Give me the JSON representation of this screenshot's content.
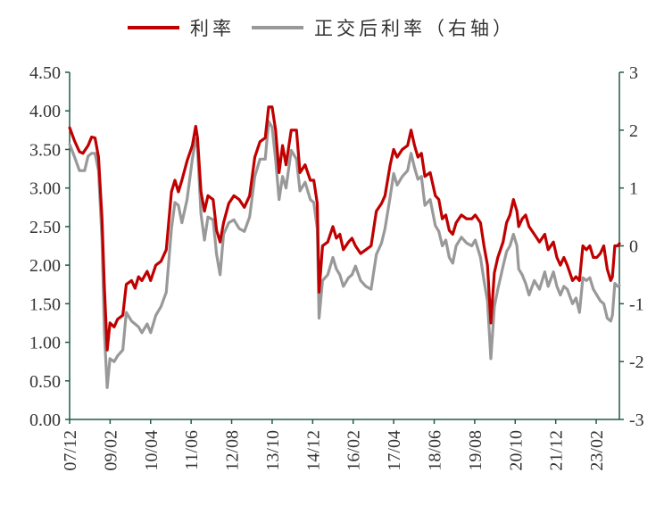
{
  "chart_data": {
    "type": "line",
    "legend_position": "top",
    "grid": false,
    "xlim": [
      2007.917,
      2023.75
    ],
    "y_left": {
      "lim": [
        0,
        4.5
      ],
      "ticks": [
        "0.00",
        "0.50",
        "1.00",
        "1.50",
        "2.00",
        "2.50",
        "3.00",
        "3.50",
        "4.00",
        "4.50"
      ]
    },
    "y_right": {
      "lim": [
        -3,
        3
      ],
      "ticks": [
        "-3",
        "-2",
        "-1",
        "0",
        "1",
        "2",
        "3"
      ]
    },
    "x_ticks": [
      {
        "label": "07/12",
        "t": 2007.917
      },
      {
        "label": "09/02",
        "t": 2009.083
      },
      {
        "label": "10/04",
        "t": 2010.25
      },
      {
        "label": "11/06",
        "t": 2011.417
      },
      {
        "label": "12/08",
        "t": 2012.583
      },
      {
        "label": "13/10",
        "t": 2013.75
      },
      {
        "label": "14/12",
        "t": 2014.917
      },
      {
        "label": "16/02",
        "t": 2016.083
      },
      {
        "label": "17/04",
        "t": 2017.25
      },
      {
        "label": "18/06",
        "t": 2018.417
      },
      {
        "label": "19/08",
        "t": 2019.583
      },
      {
        "label": "20/10",
        "t": 2020.75
      },
      {
        "label": "21/12",
        "t": 2021.917
      },
      {
        "label": "23/02",
        "t": 2023.083
      }
    ],
    "series": [
      {
        "name": "利率",
        "axis": "left",
        "color": "#c00000",
        "points": [
          [
            2007.92,
            3.78
          ],
          [
            2008.05,
            3.62
          ],
          [
            2008.2,
            3.47
          ],
          [
            2008.3,
            3.45
          ],
          [
            2008.45,
            3.55
          ],
          [
            2008.55,
            3.66
          ],
          [
            2008.65,
            3.65
          ],
          [
            2008.75,
            3.4
          ],
          [
            2008.85,
            2.6
          ],
          [
            2008.92,
            1.7
          ],
          [
            2009.0,
            0.9
          ],
          [
            2009.08,
            1.25
          ],
          [
            2009.2,
            1.2
          ],
          [
            2009.3,
            1.3
          ],
          [
            2009.45,
            1.35
          ],
          [
            2009.55,
            1.75
          ],
          [
            2009.7,
            1.8
          ],
          [
            2009.8,
            1.7
          ],
          [
            2009.9,
            1.85
          ],
          [
            2010.0,
            1.8
          ],
          [
            2010.15,
            1.92
          ],
          [
            2010.25,
            1.8
          ],
          [
            2010.4,
            2.0
          ],
          [
            2010.55,
            2.05
          ],
          [
            2010.7,
            2.2
          ],
          [
            2010.85,
            2.95
          ],
          [
            2010.95,
            3.1
          ],
          [
            2011.05,
            2.95
          ],
          [
            2011.15,
            3.1
          ],
          [
            2011.3,
            3.35
          ],
          [
            2011.45,
            3.55
          ],
          [
            2011.55,
            3.8
          ],
          [
            2011.6,
            3.65
          ],
          [
            2011.7,
            2.95
          ],
          [
            2011.8,
            2.7
          ],
          [
            2011.9,
            2.9
          ],
          [
            2012.05,
            2.85
          ],
          [
            2012.15,
            2.45
          ],
          [
            2012.25,
            2.3
          ],
          [
            2012.35,
            2.55
          ],
          [
            2012.5,
            2.8
          ],
          [
            2012.65,
            2.9
          ],
          [
            2012.8,
            2.85
          ],
          [
            2012.95,
            2.75
          ],
          [
            2013.1,
            2.9
          ],
          [
            2013.25,
            3.4
          ],
          [
            2013.4,
            3.6
          ],
          [
            2013.55,
            3.65
          ],
          [
            2013.65,
            4.05
          ],
          [
            2013.75,
            4.05
          ],
          [
            2013.85,
            3.75
          ],
          [
            2013.95,
            3.2
          ],
          [
            2014.05,
            3.55
          ],
          [
            2014.15,
            3.3
          ],
          [
            2014.3,
            3.75
          ],
          [
            2014.45,
            3.75
          ],
          [
            2014.55,
            3.2
          ],
          [
            2014.7,
            3.3
          ],
          [
            2014.85,
            3.1
          ],
          [
            2014.95,
            3.1
          ],
          [
            2015.05,
            2.8
          ],
          [
            2015.1,
            1.65
          ],
          [
            2015.2,
            2.25
          ],
          [
            2015.35,
            2.3
          ],
          [
            2015.5,
            2.5
          ],
          [
            2015.6,
            2.35
          ],
          [
            2015.7,
            2.4
          ],
          [
            2015.8,
            2.2
          ],
          [
            2015.95,
            2.3
          ],
          [
            2016.05,
            2.35
          ],
          [
            2016.15,
            2.25
          ],
          [
            2016.3,
            2.15
          ],
          [
            2016.45,
            2.2
          ],
          [
            2016.6,
            2.25
          ],
          [
            2016.75,
            2.7
          ],
          [
            2016.9,
            2.8
          ],
          [
            2017.0,
            2.9
          ],
          [
            2017.15,
            3.3
          ],
          [
            2017.25,
            3.5
          ],
          [
            2017.35,
            3.4
          ],
          [
            2017.5,
            3.5
          ],
          [
            2017.65,
            3.55
          ],
          [
            2017.75,
            3.75
          ],
          [
            2017.85,
            3.55
          ],
          [
            2017.95,
            3.4
          ],
          [
            2018.05,
            3.45
          ],
          [
            2018.15,
            3.15
          ],
          [
            2018.3,
            3.2
          ],
          [
            2018.45,
            2.9
          ],
          [
            2018.55,
            2.85
          ],
          [
            2018.65,
            2.6
          ],
          [
            2018.75,
            2.65
          ],
          [
            2018.85,
            2.45
          ],
          [
            2018.95,
            2.4
          ],
          [
            2019.05,
            2.55
          ],
          [
            2019.2,
            2.65
          ],
          [
            2019.35,
            2.6
          ],
          [
            2019.5,
            2.6
          ],
          [
            2019.6,
            2.65
          ],
          [
            2019.75,
            2.55
          ],
          [
            2019.85,
            2.25
          ],
          [
            2019.95,
            2.0
          ],
          [
            2020.05,
            1.25
          ],
          [
            2020.15,
            1.9
          ],
          [
            2020.25,
            2.1
          ],
          [
            2020.4,
            2.3
          ],
          [
            2020.5,
            2.55
          ],
          [
            2020.6,
            2.65
          ],
          [
            2020.7,
            2.85
          ],
          [
            2020.8,
            2.7
          ],
          [
            2020.85,
            2.5
          ],
          [
            2020.95,
            2.6
          ],
          [
            2021.05,
            2.65
          ],
          [
            2021.15,
            2.5
          ],
          [
            2021.3,
            2.4
          ],
          [
            2021.45,
            2.3
          ],
          [
            2021.6,
            2.4
          ],
          [
            2021.7,
            2.2
          ],
          [
            2021.85,
            2.3
          ],
          [
            2021.95,
            2.1
          ],
          [
            2022.05,
            2.0
          ],
          [
            2022.15,
            2.1
          ],
          [
            2022.25,
            2.0
          ],
          [
            2022.4,
            1.8
          ],
          [
            2022.5,
            1.85
          ],
          [
            2022.6,
            1.8
          ],
          [
            2022.7,
            2.25
          ],
          [
            2022.8,
            2.2
          ],
          [
            2022.9,
            2.25
          ],
          [
            2023.0,
            2.1
          ],
          [
            2023.1,
            2.1
          ],
          [
            2023.2,
            2.15
          ],
          [
            2023.3,
            2.25
          ],
          [
            2023.4,
            1.95
          ],
          [
            2023.5,
            1.8
          ],
          [
            2023.55,
            1.85
          ],
          [
            2023.62,
            2.25
          ],
          [
            2023.7,
            2.25
          ],
          [
            2023.75,
            2.28
          ]
        ]
      },
      {
        "name": "正交后利率（右轴）",
        "axis": "right",
        "color": "#999999",
        "points": [
          [
            2007.92,
            1.75
          ],
          [
            2008.05,
            1.55
          ],
          [
            2008.2,
            1.3
          ],
          [
            2008.35,
            1.3
          ],
          [
            2008.45,
            1.55
          ],
          [
            2008.55,
            1.6
          ],
          [
            2008.65,
            1.6
          ],
          [
            2008.75,
            1.3
          ],
          [
            2008.85,
            0.1
          ],
          [
            2008.92,
            -1.5
          ],
          [
            2009.0,
            -2.45
          ],
          [
            2009.08,
            -1.95
          ],
          [
            2009.2,
            -2.0
          ],
          [
            2009.3,
            -1.9
          ],
          [
            2009.45,
            -1.8
          ],
          [
            2009.55,
            -1.15
          ],
          [
            2009.7,
            -1.3
          ],
          [
            2009.8,
            -1.35
          ],
          [
            2009.9,
            -1.4
          ],
          [
            2010.0,
            -1.5
          ],
          [
            2010.15,
            -1.35
          ],
          [
            2010.25,
            -1.5
          ],
          [
            2010.4,
            -1.2
          ],
          [
            2010.55,
            -1.05
          ],
          [
            2010.7,
            -0.8
          ],
          [
            2010.85,
            0.3
          ],
          [
            2010.95,
            0.75
          ],
          [
            2011.05,
            0.7
          ],
          [
            2011.15,
            0.4
          ],
          [
            2011.3,
            0.8
          ],
          [
            2011.45,
            1.5
          ],
          [
            2011.55,
            1.85
          ],
          [
            2011.6,
            1.7
          ],
          [
            2011.7,
            0.55
          ],
          [
            2011.8,
            0.1
          ],
          [
            2011.9,
            0.5
          ],
          [
            2012.05,
            0.45
          ],
          [
            2012.15,
            -0.15
          ],
          [
            2012.25,
            -0.5
          ],
          [
            2012.35,
            0.2
          ],
          [
            2012.5,
            0.4
          ],
          [
            2012.65,
            0.45
          ],
          [
            2012.8,
            0.3
          ],
          [
            2012.95,
            0.25
          ],
          [
            2013.1,
            0.5
          ],
          [
            2013.25,
            1.2
          ],
          [
            2013.4,
            1.5
          ],
          [
            2013.55,
            1.5
          ],
          [
            2013.65,
            2.15
          ],
          [
            2013.75,
            2.05
          ],
          [
            2013.85,
            1.5
          ],
          [
            2013.95,
            0.8
          ],
          [
            2014.05,
            1.2
          ],
          [
            2014.15,
            1.0
          ],
          [
            2014.3,
            1.65
          ],
          [
            2014.45,
            1.5
          ],
          [
            2014.55,
            0.95
          ],
          [
            2014.7,
            1.1
          ],
          [
            2014.85,
            0.8
          ],
          [
            2014.95,
            0.75
          ],
          [
            2015.05,
            0.3
          ],
          [
            2015.1,
            -1.25
          ],
          [
            2015.2,
            -0.6
          ],
          [
            2015.35,
            -0.5
          ],
          [
            2015.5,
            -0.2
          ],
          [
            2015.6,
            -0.4
          ],
          [
            2015.7,
            -0.5
          ],
          [
            2015.8,
            -0.7
          ],
          [
            2015.95,
            -0.55
          ],
          [
            2016.05,
            -0.5
          ],
          [
            2016.15,
            -0.35
          ],
          [
            2016.3,
            -0.6
          ],
          [
            2016.45,
            -0.7
          ],
          [
            2016.6,
            -0.75
          ],
          [
            2016.75,
            -0.15
          ],
          [
            2016.9,
            0.05
          ],
          [
            2017.0,
            0.3
          ],
          [
            2017.15,
            0.85
          ],
          [
            2017.25,
            1.25
          ],
          [
            2017.35,
            1.05
          ],
          [
            2017.5,
            1.2
          ],
          [
            2017.65,
            1.3
          ],
          [
            2017.75,
            1.6
          ],
          [
            2017.85,
            1.35
          ],
          [
            2017.95,
            1.15
          ],
          [
            2018.05,
            1.2
          ],
          [
            2018.15,
            0.7
          ],
          [
            2018.3,
            0.8
          ],
          [
            2018.45,
            0.35
          ],
          [
            2018.55,
            0.25
          ],
          [
            2018.65,
            0.0
          ],
          [
            2018.75,
            0.1
          ],
          [
            2018.85,
            -0.2
          ],
          [
            2018.95,
            -0.3
          ],
          [
            2019.05,
            0.0
          ],
          [
            2019.2,
            0.15
          ],
          [
            2019.35,
            0.05
          ],
          [
            2019.5,
            0.0
          ],
          [
            2019.6,
            0.1
          ],
          [
            2019.75,
            -0.2
          ],
          [
            2019.85,
            -0.6
          ],
          [
            2019.95,
            -0.95
          ],
          [
            2020.05,
            -1.95
          ],
          [
            2020.15,
            -1.05
          ],
          [
            2020.25,
            -0.75
          ],
          [
            2020.4,
            -0.35
          ],
          [
            2020.5,
            -0.1
          ],
          [
            2020.6,
            0.0
          ],
          [
            2020.7,
            0.2
          ],
          [
            2020.8,
            0.0
          ],
          [
            2020.85,
            -0.4
          ],
          [
            2020.95,
            -0.5
          ],
          [
            2021.05,
            -0.65
          ],
          [
            2021.15,
            -0.85
          ],
          [
            2021.3,
            -0.6
          ],
          [
            2021.45,
            -0.75
          ],
          [
            2021.6,
            -0.45
          ],
          [
            2021.7,
            -0.7
          ],
          [
            2021.85,
            -0.45
          ],
          [
            2021.95,
            -0.7
          ],
          [
            2022.05,
            -0.85
          ],
          [
            2022.15,
            -0.7
          ],
          [
            2022.25,
            -0.75
          ],
          [
            2022.4,
            -1.0
          ],
          [
            2022.5,
            -0.9
          ],
          [
            2022.6,
            -1.15
          ],
          [
            2022.7,
            -0.55
          ],
          [
            2022.8,
            -0.6
          ],
          [
            2022.9,
            -0.55
          ],
          [
            2023.0,
            -0.75
          ],
          [
            2023.1,
            -0.85
          ],
          [
            2023.2,
            -0.95
          ],
          [
            2023.3,
            -1.0
          ],
          [
            2023.4,
            -1.25
          ],
          [
            2023.5,
            -1.3
          ],
          [
            2023.55,
            -1.2
          ],
          [
            2023.62,
            -0.65
          ],
          [
            2023.7,
            -0.7
          ],
          [
            2023.75,
            -0.68
          ]
        ]
      }
    ]
  }
}
